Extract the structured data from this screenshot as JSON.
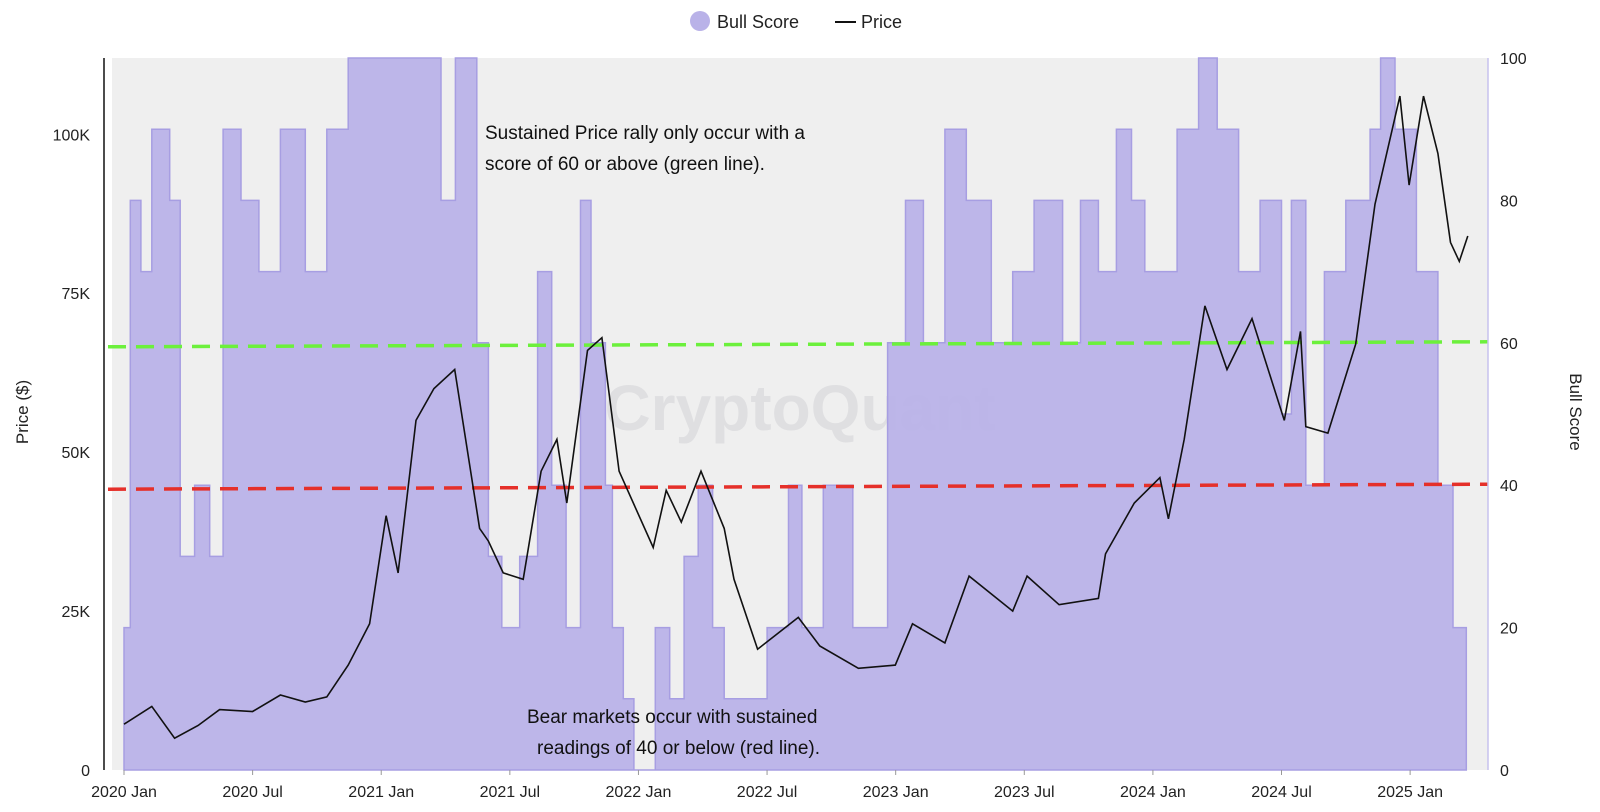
{
  "legend": {
    "bull_score_label": "Bull Score",
    "price_label": "Price"
  },
  "watermark": "CryptoQuant",
  "colors": {
    "bull_fill": "#b9b2e8",
    "bull_line": "#a79ee2",
    "price_line": "#111111",
    "green_line": "#6cf03c",
    "red_line": "#e5302a",
    "plot_bg": "#efefef"
  },
  "annotations": {
    "top_line1": "Sustained Price rally only occur with a",
    "top_line2": "score of 60 or above (green line).",
    "bottom_line1": "Bear markets occur with sustained",
    "bottom_line2": "readings of 40 or below (red line)."
  },
  "chart_data": {
    "type": "line",
    "y_left_label": "Price ($)",
    "y_right_label": "Bull Score",
    "y_left_ticks": [
      "0",
      "25K",
      "50K",
      "75K",
      "100K"
    ],
    "y_right_ticks": [
      "0",
      "20",
      "40",
      "60",
      "80",
      "100"
    ],
    "x_ticks": [
      "2020 Jan",
      "2020 Jul",
      "2021 Jan",
      "2021 Jul",
      "2022 Jan",
      "2022 Jul",
      "2023 Jan",
      "2023 Jul",
      "2024 Jan",
      "2024 Jul",
      "2025 Jan"
    ],
    "y_left_range": [
      0,
      112000
    ],
    "y_right_range": [
      0,
      100
    ],
    "thresholds": [
      {
        "name": "green",
        "value": 60
      },
      {
        "name": "red",
        "value": 40
      }
    ],
    "series": [
      {
        "name": "Price",
        "axis": "left",
        "points": [
          [
            "2020-01-01",
            7200
          ],
          [
            "2020-02-10",
            10000
          ],
          [
            "2020-03-12",
            5000
          ],
          [
            "2020-04-15",
            7000
          ],
          [
            "2020-05-15",
            9500
          ],
          [
            "2020-07-01",
            9200
          ],
          [
            "2020-08-10",
            11800
          ],
          [
            "2020-09-15",
            10700
          ],
          [
            "2020-10-15",
            11500
          ],
          [
            "2020-11-15",
            16500
          ],
          [
            "2020-12-15",
            23000
          ],
          [
            "2021-01-08",
            40000
          ],
          [
            "2021-01-25",
            31000
          ],
          [
            "2021-02-20",
            55000
          ],
          [
            "2021-03-15",
            60000
          ],
          [
            "2021-04-14",
            63000
          ],
          [
            "2021-05-19",
            38000
          ],
          [
            "2021-06-01",
            36000
          ],
          [
            "2021-06-22",
            31000
          ],
          [
            "2021-07-20",
            30000
          ],
          [
            "2021-08-15",
            47000
          ],
          [
            "2021-09-07",
            52000
          ],
          [
            "2021-09-21",
            42000
          ],
          [
            "2021-10-20",
            66000
          ],
          [
            "2021-11-10",
            68000
          ],
          [
            "2021-12-04",
            47000
          ],
          [
            "2022-01-22",
            35000
          ],
          [
            "2022-02-10",
            44000
          ],
          [
            "2022-03-01",
            39000
          ],
          [
            "2022-03-29",
            47000
          ],
          [
            "2022-05-01",
            38000
          ],
          [
            "2022-05-15",
            30000
          ],
          [
            "2022-06-18",
            19000
          ],
          [
            "2022-08-15",
            24000
          ],
          [
            "2022-09-15",
            19500
          ],
          [
            "2022-11-09",
            16000
          ],
          [
            "2022-12-31",
            16500
          ],
          [
            "2023-01-25",
            23000
          ],
          [
            "2023-03-10",
            20000
          ],
          [
            "2023-04-14",
            30500
          ],
          [
            "2023-06-15",
            25000
          ],
          [
            "2023-07-05",
            30500
          ],
          [
            "2023-08-20",
            26000
          ],
          [
            "2023-10-15",
            27000
          ],
          [
            "2023-10-25",
            34000
          ],
          [
            "2023-12-05",
            42000
          ],
          [
            "2024-01-11",
            46000
          ],
          [
            "2024-01-23",
            39500
          ],
          [
            "2024-02-15",
            52000
          ],
          [
            "2024-03-14",
            73000
          ],
          [
            "2024-04-15",
            63000
          ],
          [
            "2024-05-20",
            71000
          ],
          [
            "2024-07-05",
            55000
          ],
          [
            "2024-07-28",
            69000
          ],
          [
            "2024-08-05",
            54000
          ],
          [
            "2024-09-06",
            53000
          ],
          [
            "2024-10-15",
            67000
          ],
          [
            "2024-11-12",
            89000
          ],
          [
            "2024-12-17",
            106000
          ],
          [
            "2024-12-30",
            92000
          ],
          [
            "2025-01-20",
            106000
          ],
          [
            "2025-02-10",
            97000
          ],
          [
            "2025-02-28",
            83000
          ],
          [
            "2025-03-10",
            80000
          ],
          [
            "2025-03-22",
            84000
          ]
        ]
      },
      {
        "name": "Bull Score",
        "axis": "right",
        "points": [
          [
            "2020-01-01",
            20
          ],
          [
            "2020-01-10",
            80
          ],
          [
            "2020-01-25",
            70
          ],
          [
            "2020-02-10",
            90
          ],
          [
            "2020-03-05",
            80
          ],
          [
            "2020-03-20",
            30
          ],
          [
            "2020-04-10",
            40
          ],
          [
            "2020-05-01",
            30
          ],
          [
            "2020-05-20",
            90
          ],
          [
            "2020-06-15",
            80
          ],
          [
            "2020-07-10",
            70
          ],
          [
            "2020-08-10",
            90
          ],
          [
            "2020-09-15",
            70
          ],
          [
            "2020-10-15",
            90
          ],
          [
            "2020-11-15",
            100
          ],
          [
            "2021-01-15",
            100
          ],
          [
            "2021-02-20",
            100
          ],
          [
            "2021-03-25",
            80
          ],
          [
            "2021-04-15",
            100
          ],
          [
            "2021-05-15",
            60
          ],
          [
            "2021-06-01",
            30
          ],
          [
            "2021-06-20",
            20
          ],
          [
            "2021-07-15",
            30
          ],
          [
            "2021-08-10",
            70
          ],
          [
            "2021-08-30",
            40
          ],
          [
            "2021-09-20",
            20
          ],
          [
            "2021-10-10",
            80
          ],
          [
            "2021-10-25",
            60
          ],
          [
            "2021-11-15",
            40
          ],
          [
            "2021-11-25",
            20
          ],
          [
            "2021-12-10",
            10
          ],
          [
            "2021-12-25",
            0
          ],
          [
            "2022-01-15",
            0
          ],
          [
            "2022-01-25",
            20
          ],
          [
            "2022-02-15",
            10
          ],
          [
            "2022-03-05",
            30
          ],
          [
            "2022-03-25",
            40
          ],
          [
            "2022-04-15",
            20
          ],
          [
            "2022-05-01",
            10
          ],
          [
            "2022-06-15",
            10
          ],
          [
            "2022-07-01",
            20
          ],
          [
            "2022-08-01",
            40
          ],
          [
            "2022-08-20",
            20
          ],
          [
            "2022-09-20",
            40
          ],
          [
            "2022-11-01",
            20
          ],
          [
            "2022-12-01",
            20
          ],
          [
            "2022-12-20",
            60
          ],
          [
            "2023-01-15",
            80
          ],
          [
            "2023-02-10",
            60
          ],
          [
            "2023-03-10",
            90
          ],
          [
            "2023-04-10",
            80
          ],
          [
            "2023-05-15",
            60
          ],
          [
            "2023-06-15",
            70
          ],
          [
            "2023-07-15",
            80
          ],
          [
            "2023-08-25",
            60
          ],
          [
            "2023-09-20",
            80
          ],
          [
            "2023-10-15",
            70
          ],
          [
            "2023-11-10",
            90
          ],
          [
            "2023-12-01",
            80
          ],
          [
            "2023-12-20",
            70
          ],
          [
            "2024-01-15",
            70
          ],
          [
            "2024-02-05",
            90
          ],
          [
            "2024-03-05",
            100
          ],
          [
            "2024-04-01",
            90
          ],
          [
            "2024-05-01",
            70
          ],
          [
            "2024-06-01",
            80
          ],
          [
            "2024-07-01",
            50
          ],
          [
            "2024-07-15",
            80
          ],
          [
            "2024-08-05",
            40
          ],
          [
            "2024-09-01",
            70
          ],
          [
            "2024-10-01",
            80
          ],
          [
            "2024-11-05",
            90
          ],
          [
            "2024-11-20",
            100
          ],
          [
            "2024-12-10",
            90
          ],
          [
            "2025-01-10",
            70
          ],
          [
            "2025-02-10",
            40
          ],
          [
            "2025-03-01",
            20
          ],
          [
            "2025-03-20",
            20
          ]
        ]
      }
    ]
  }
}
